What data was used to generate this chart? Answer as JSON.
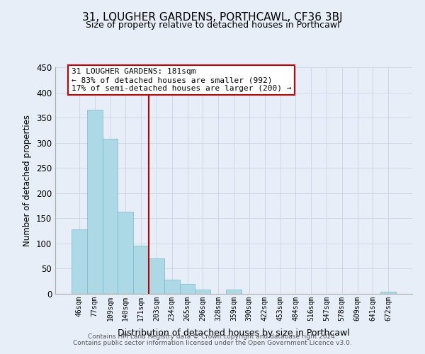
{
  "title": "31, LOUGHER GARDENS, PORTHCAWL, CF36 3BJ",
  "subtitle": "Size of property relative to detached houses in Porthcawl",
  "xlabel": "Distribution of detached houses by size in Porthcawl",
  "ylabel": "Number of detached properties",
  "bin_labels": [
    "46sqm",
    "77sqm",
    "109sqm",
    "140sqm",
    "171sqm",
    "203sqm",
    "234sqm",
    "265sqm",
    "296sqm",
    "328sqm",
    "359sqm",
    "390sqm",
    "422sqm",
    "453sqm",
    "484sqm",
    "516sqm",
    "547sqm",
    "578sqm",
    "609sqm",
    "641sqm",
    "672sqm"
  ],
  "bar_heights": [
    128,
    365,
    308,
    163,
    95,
    70,
    28,
    20,
    8,
    0,
    9,
    0,
    0,
    0,
    0,
    0,
    0,
    0,
    0,
    0,
    4
  ],
  "bar_color": "#add8e6",
  "bar_edge_color": "#7ab8cc",
  "vline_x_index": 4.5,
  "vline_color": "#bb0000",
  "annotation_title": "31 LOUGHER GARDENS: 181sqm",
  "annotation_line1": "← 83% of detached houses are smaller (992)",
  "annotation_line2": "17% of semi-detached houses are larger (200) →",
  "annotation_box_color": "#ffffff",
  "annotation_box_edge_color": "#cc0000",
  "ylim": [
    0,
    450
  ],
  "yticks": [
    0,
    50,
    100,
    150,
    200,
    250,
    300,
    350,
    400,
    450
  ],
  "grid_color": "#d0d8e8",
  "bg_color": "#e8eef8",
  "footer1": "Contains HM Land Registry data © Crown copyright and database right 2024.",
  "footer2": "Contains public sector information licensed under the Open Government Licence v3.0."
}
